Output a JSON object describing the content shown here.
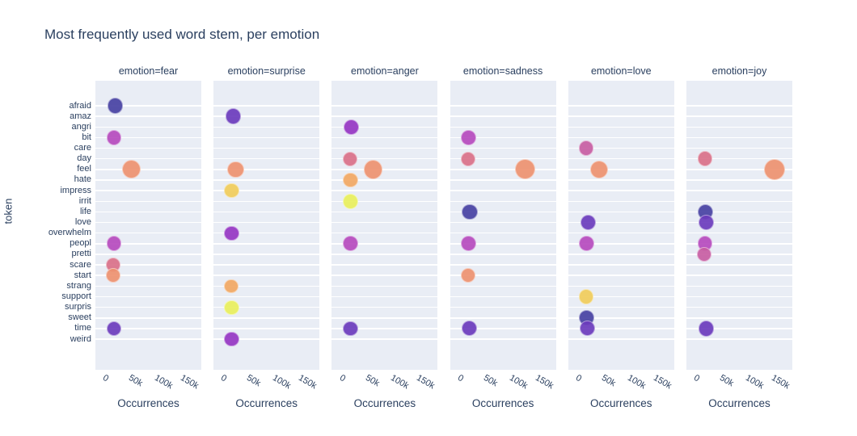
{
  "figure": {
    "title": "Most frequently used word stem, per emotion"
  },
  "colors": {
    "background": "#ffffff",
    "panel_background": "#e9edf5",
    "gridline": "#ffffff",
    "text": "#2a3f5f"
  },
  "chart_data": {
    "type": "scatter",
    "title": "Most frequently used word stem, per emotion",
    "xlabel": "Occurrences",
    "ylabel": "token",
    "legend_position": "none",
    "grid": "horizontal white gridlines on light-blue panels",
    "x_tick_labels": [
      "0",
      "50k",
      "100k",
      "150k"
    ],
    "x_tick_values": [
      0,
      50000,
      100000,
      150000
    ],
    "x_range": [
      -30000,
      175000
    ],
    "x_tick_rotation_deg": 30,
    "y_categories": [
      "afraid",
      "amaz",
      "angri",
      "bit",
      "care",
      "day",
      "feel",
      "hate",
      "impress",
      "irrit",
      "life",
      "love",
      "overwhelm",
      "peopl",
      "pretti",
      "scare",
      "start",
      "strang",
      "support",
      "surpris",
      "sweet",
      "time",
      "weird"
    ],
    "token_color_cycle": [
      "#4842a3",
      "#6c3cbd",
      "#9636c4",
      "#b74bbe",
      "#c85ea3",
      "#da7189",
      "#ee9270",
      "#f2a863",
      "#f1cd5b",
      "#e9f05d"
    ],
    "size_encodes": "occurrences",
    "facets": [
      {
        "emotion": "fear",
        "header": "emotion=fear",
        "points": [
          {
            "token": "afraid",
            "occurrences": 8000
          },
          {
            "token": "bit",
            "occurrences": 6000
          },
          {
            "token": "feel",
            "occurrences": 40000
          },
          {
            "token": "peopl",
            "occurrences": 6000
          },
          {
            "token": "scare",
            "occurrences": 5000
          },
          {
            "token": "start",
            "occurrences": 5000
          },
          {
            "token": "time",
            "occurrences": 6000
          }
        ]
      },
      {
        "emotion": "surprise",
        "header": "emotion=surprise",
        "points": [
          {
            "token": "amaz",
            "occurrences": 8000
          },
          {
            "token": "feel",
            "occurrences": 13000
          },
          {
            "token": "impress",
            "occurrences": 5000
          },
          {
            "token": "overwhelm",
            "occurrences": 5000
          },
          {
            "token": "strang",
            "occurrences": 4000
          },
          {
            "token": "surpris",
            "occurrences": 5000
          },
          {
            "token": "weird",
            "occurrences": 5000
          }
        ]
      },
      {
        "emotion": "anger",
        "header": "emotion=anger",
        "points": [
          {
            "token": "angri",
            "occurrences": 8000
          },
          {
            "token": "day",
            "occurrences": 5000
          },
          {
            "token": "feel",
            "occurrences": 50000
          },
          {
            "token": "hate",
            "occurrences": 6000
          },
          {
            "token": "irrit",
            "occurrences": 6000
          },
          {
            "token": "peopl",
            "occurrences": 6000
          },
          {
            "token": "time",
            "occurrences": 6000
          }
        ]
      },
      {
        "emotion": "sadness",
        "header": "emotion=sadness",
        "points": [
          {
            "token": "bit",
            "occurrences": 6000
          },
          {
            "token": "day",
            "occurrences": 5000
          },
          {
            "token": "feel",
            "occurrences": 115000
          },
          {
            "token": "life",
            "occurrences": 8000
          },
          {
            "token": "peopl",
            "occurrences": 6000
          },
          {
            "token": "start",
            "occurrences": 5000
          },
          {
            "token": "time",
            "occurrences": 7000
          }
        ]
      },
      {
        "emotion": "love",
        "header": "emotion=love",
        "points": [
          {
            "token": "care",
            "occurrences": 5000
          },
          {
            "token": "feel",
            "occurrences": 30000
          },
          {
            "token": "love",
            "occurrences": 9000
          },
          {
            "token": "peopl",
            "occurrences": 6000
          },
          {
            "token": "support",
            "occurrences": 5000
          },
          {
            "token": "sweet",
            "occurrences": 6000
          },
          {
            "token": "time",
            "occurrences": 7000
          }
        ]
      },
      {
        "emotion": "joy",
        "header": "emotion=joy",
        "points": [
          {
            "token": "day",
            "occurrences": 6000
          },
          {
            "token": "feel",
            "occurrences": 140000
          },
          {
            "token": "life",
            "occurrences": 7000
          },
          {
            "token": "love",
            "occurrences": 8000
          },
          {
            "token": "peopl",
            "occurrences": 6000
          },
          {
            "token": "pretti",
            "occurrences": 5000
          },
          {
            "token": "time",
            "occurrences": 8000
          }
        ]
      }
    ]
  }
}
